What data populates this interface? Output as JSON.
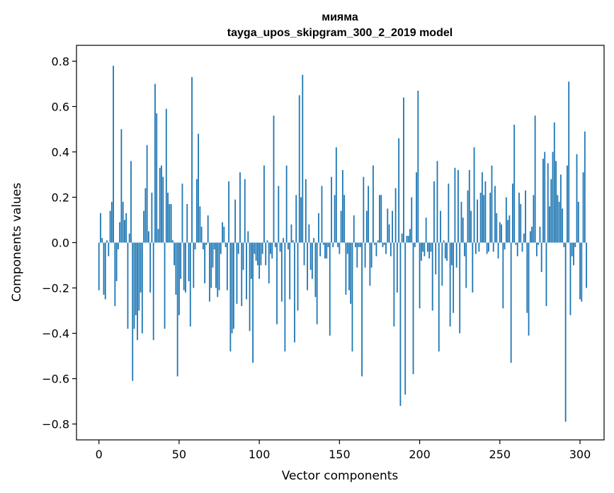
{
  "chart_data": {
    "type": "bar",
    "title": "мияма",
    "subtitle": "tayga_upos_skipgram_300_2_2019 model",
    "xlabel": "Vector components",
    "ylabel": "Components values",
    "xlim": [
      -14,
      315
    ],
    "ylim": [
      -0.87,
      0.87
    ],
    "xticks": [
      0,
      50,
      100,
      150,
      200,
      250,
      300
    ],
    "xtick_labels": [
      "0",
      "50",
      "100",
      "150",
      "200",
      "250",
      "300"
    ],
    "yticks": [
      0.8,
      0.6,
      0.4,
      0.2,
      0.0,
      -0.2,
      -0.4,
      -0.6,
      -0.8
    ],
    "ytick_labels": [
      "0.8",
      "0.6",
      "0.4",
      "0.2",
      "0.0",
      "−0.2",
      "−0.4",
      "−0.6",
      "−0.8"
    ],
    "bar_color": "#1f77b4",
    "values": [
      -0.21,
      0.13,
      0.02,
      -0.23,
      -0.25,
      0.01,
      -0.06,
      0.14,
      0.18,
      0.78,
      -0.28,
      -0.17,
      -0.03,
      0.09,
      0.5,
      0.18,
      0.1,
      0.13,
      -0.38,
      0.04,
      0.36,
      -0.61,
      -0.38,
      -0.32,
      -0.43,
      -0.3,
      -0.22,
      -0.4,
      0.14,
      0.24,
      0.43,
      0.05,
      -0.22,
      0.22,
      -0.43,
      0.7,
      0.57,
      0.06,
      0.33,
      0.34,
      0.29,
      -0.38,
      0.59,
      0.22,
      0.17,
      0.17,
      0.01,
      -0.1,
      -0.23,
      -0.59,
      -0.32,
      -0.16,
      0.26,
      -0.21,
      -0.22,
      0.17,
      -0.17,
      -0.37,
      0.73,
      -0.2,
      -0.03,
      0.28,
      0.48,
      0.16,
      0.07,
      -0.03,
      -0.18,
      -0.01,
      0.12,
      -0.26,
      -0.2,
      -0.11,
      -0.03,
      -0.2,
      -0.24,
      -0.21,
      -0.05,
      0.09,
      0.07,
      -0.02,
      -0.21,
      0.27,
      -0.48,
      -0.4,
      -0.38,
      0.19,
      -0.27,
      -0.05,
      0.31,
      -0.28,
      -0.12,
      0.28,
      -0.25,
      0.05,
      -0.39,
      -0.16,
      -0.53,
      -0.05,
      -0.08,
      -0.1,
      -0.16,
      -0.1,
      -0.05,
      0.34,
      -0.1,
      0.01,
      -0.18,
      -0.05,
      -0.07,
      0.56,
      -0.02,
      -0.36,
      0.25,
      -0.04,
      -0.26,
      0.02,
      -0.48,
      0.34,
      -0.03,
      -0.25,
      0.08,
      0.01,
      -0.44,
      0.21,
      -0.3,
      0.65,
      0.2,
      0.74,
      -0.1,
      0.28,
      -0.21,
      0.08,
      -0.12,
      -0.16,
      0.02,
      -0.24,
      -0.36,
      0.13,
      -0.06,
      0.25,
      -0.01,
      -0.07,
      -0.07,
      -0.02,
      -0.41,
      0.29,
      -0.02,
      0.21,
      0.42,
      -0.02,
      -0.05,
      0.14,
      0.32,
      0.21,
      -0.23,
      -0.05,
      -0.21,
      -0.27,
      -0.48,
      0.12,
      -0.02,
      -0.11,
      -0.02,
      -0.02,
      -0.59,
      0.29,
      -0.11,
      0.14,
      0.25,
      -0.19,
      -0.11,
      0.34,
      -0.01,
      -0.06,
      0.01,
      0.21,
      0.21,
      -0.02,
      -0.01,
      -0.05,
      0.15,
      0.08,
      -0.06,
      0.14,
      -0.37,
      0.24,
      -0.22,
      0.46,
      -0.72,
      0.04,
      0.64,
      -0.67,
      0.03,
      0.03,
      0.06,
      0.2,
      -0.58,
      -0.02,
      0.31,
      0.67,
      -0.29,
      -0.08,
      -0.04,
      -0.06,
      0.11,
      -0.04,
      -0.07,
      -0.04,
      -0.3,
      0.27,
      -0.14,
      0.36,
      -0.48,
      0.14,
      -0.19,
      0.01,
      -0.07,
      -0.08,
      0.26,
      -0.37,
      -0.1,
      -0.31,
      0.33,
      -0.11,
      0.32,
      -0.4,
      0.18,
      0.11,
      -0.06,
      -0.2,
      0.23,
      0.32,
      0.14,
      -0.22,
      0.42,
      -0.05,
      0.19,
      -0.04,
      0.22,
      0.31,
      0.21,
      0.27,
      -0.05,
      -0.04,
      0.22,
      0.34,
      -0.04,
      0.25,
      0.13,
      -0.07,
      0.09,
      0.08,
      -0.29,
      -0.03,
      0.2,
      0.1,
      0.12,
      -0.53,
      0.26,
      0.52,
      -0.01,
      -0.06,
      0.22,
      0.17,
      -0.04,
      0.04,
      0.23,
      -0.31,
      -0.41,
      0.05,
      0.07,
      0.21,
      0.56,
      -0.06,
      -0.01,
      0.07,
      -0.13,
      0.37,
      0.4,
      -0.28,
      0.35,
      0.16,
      0.28,
      0.4,
      0.53,
      0.36,
      0.21,
      0.18,
      0.3,
      0.15,
      -0.02,
      -0.79,
      0.34,
      0.71,
      -0.32,
      -0.06,
      -0.1,
      -0.02,
      0.39,
      0.18,
      -0.25,
      -0.26,
      0.31,
      0.49,
      -0.2
    ]
  }
}
